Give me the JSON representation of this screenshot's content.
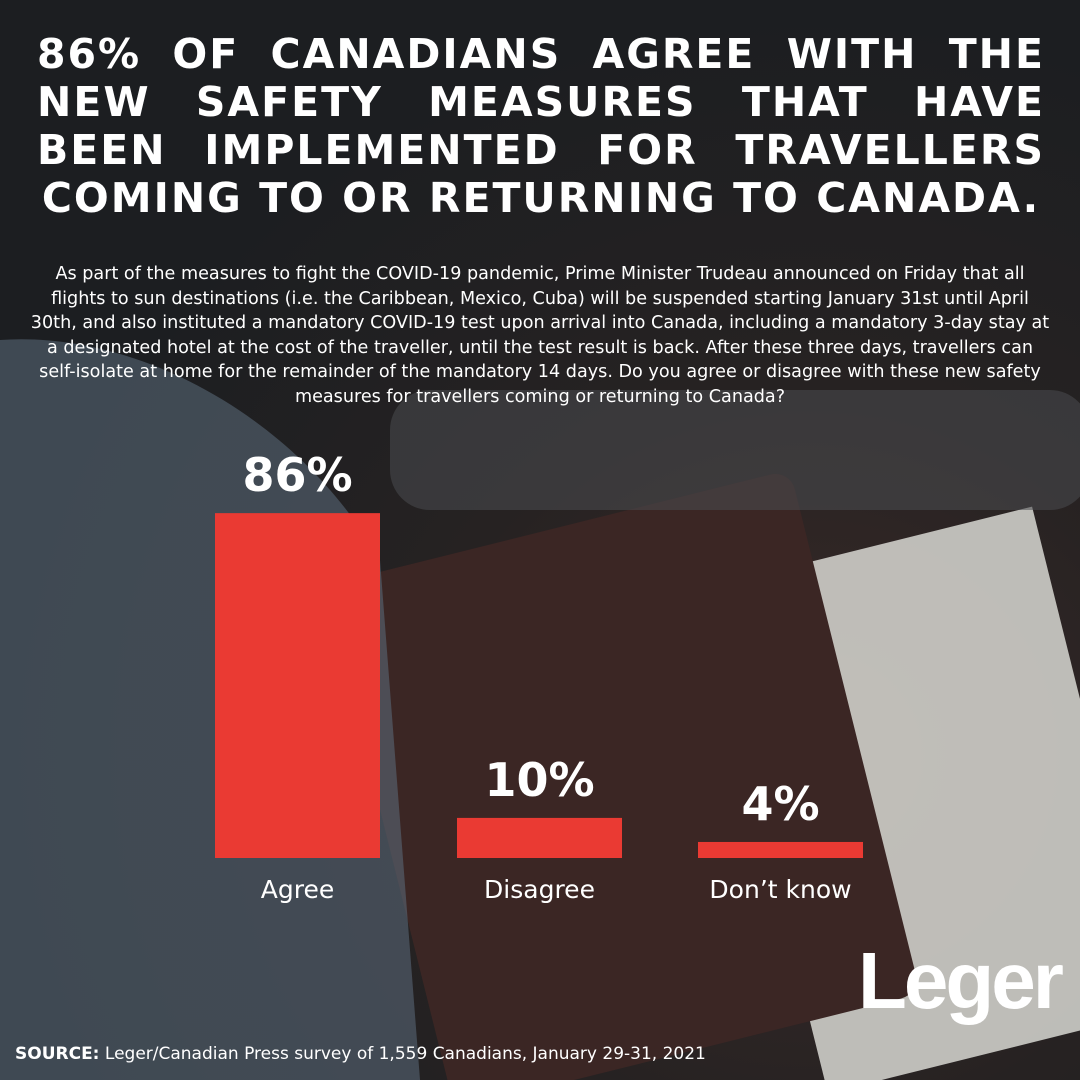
{
  "chart_data": {
    "type": "bar",
    "title": "86% OF CANADIANS AGREE WITH THE NEW SAFETY MEASURES THAT HAVE BEEN IMPLEMENTED FOR TRAVELLERS COMING TO OR RETURNING TO CANADA.",
    "subtitle": "As part of the measures to fight the COVID-19 pandemic, Prime Minister Trudeau announced on Friday that all flights to sun destinations (i.e. the Caribbean, Mexico, Cuba) will be suspended starting January 31st until April 30th, and also instituted a mandatory COVID-19 test upon arrival into Canada, including a mandatory 3-day stay at a designated hotel at the cost of the traveller, until the test result is back. After these three days, travellers can self-isolate at home for the remainder of the mandatory 14 days. Do you agree or disagree with these new safety measures for travellers coming or returning to Canada?",
    "categories": [
      "Agree",
      "Disagree",
      "Don’t know"
    ],
    "values": [
      86,
      10,
      4
    ],
    "value_labels": [
      "86%",
      "10%",
      "4%"
    ],
    "color": "#ea3a33",
    "source_label": "SOURCE:",
    "source": "Leger/Canadian Press survey of 1,559 Canadians, January 29-31, 2021",
    "logo": "Leger"
  }
}
